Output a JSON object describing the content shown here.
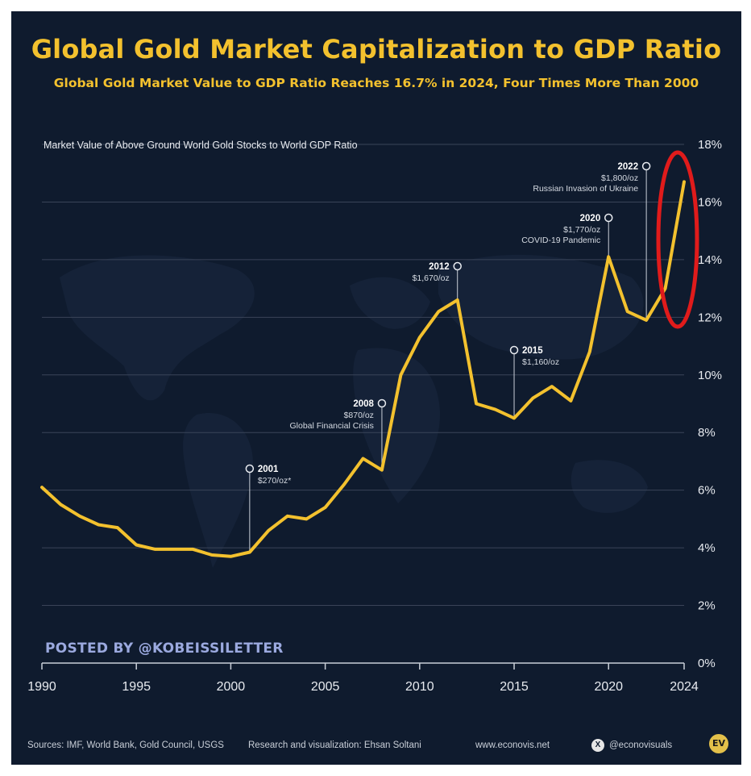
{
  "title": "Global Gold Market Capitalization to GDP Ratio",
  "subtitle": "Global Gold Market Value to GDP Ratio Reaches 16.7% in 2024, Four Times More Than 2000",
  "posted_by": "POSTED BY @KOBEISSILETTER",
  "footer": {
    "sources": "Sources: IMF, World Bank, Gold Council, USGS",
    "research": "Research and visualization: Ehsan Soltani",
    "website": "www.econovis.net",
    "handle": "@econovisuals",
    "x_icon": "X",
    "logo_text": "EV"
  },
  "colors": {
    "background": "#0f1b2e",
    "line": "#f3c12e",
    "title": "#f3c12e",
    "highlight_circle": "#e01b1b",
    "grid": "#3a4458"
  },
  "chart_data": {
    "type": "line",
    "ylabel": "Market Value of Above Ground World Gold Stocks to World GDP Ratio",
    "xlim": [
      1990,
      2024
    ],
    "ylim": [
      0,
      18
    ],
    "grid": true,
    "x_ticks": [
      "1990",
      "1995",
      "2000",
      "2005",
      "2010",
      "2015",
      "2020",
      "2024"
    ],
    "y_ticks": [
      "0%",
      "2%",
      "4%",
      "6%",
      "8%",
      "10%",
      "12%",
      "14%",
      "16%",
      "18%"
    ],
    "series": [
      {
        "x": [
          1990,
          1991,
          1992,
          1993,
          1994,
          1995,
          1996,
          1997,
          1998,
          1999,
          2000,
          2001,
          2002,
          2003,
          2004,
          2005,
          2006,
          2007,
          2008,
          2009,
          2010,
          2011,
          2012,
          2013,
          2014,
          2015,
          2016,
          2017,
          2018,
          2019,
          2020,
          2021,
          2022,
          2023,
          2024
        ],
        "values": [
          6.1,
          5.5,
          5.1,
          4.8,
          4.7,
          4.1,
          3.95,
          3.95,
          3.95,
          3.75,
          3.7,
          3.85,
          4.6,
          5.1,
          5.0,
          5.4,
          6.2,
          7.1,
          6.7,
          10.0,
          11.3,
          12.2,
          12.6,
          9.0,
          8.8,
          8.5,
          9.2,
          9.6,
          9.1,
          10.8,
          14.1,
          12.2,
          11.9,
          13.0,
          16.7
        ]
      }
    ],
    "annotations": [
      {
        "year": "2001",
        "lines": [
          "$270/oz*"
        ]
      },
      {
        "year": "2008",
        "lines": [
          "$870/oz",
          "Global Financial Crisis"
        ]
      },
      {
        "year": "2012",
        "lines": [
          "$1,670/oz"
        ]
      },
      {
        "year": "2015",
        "lines": [
          "$1,160/oz"
        ]
      },
      {
        "year": "2020",
        "lines": [
          "$1,770/oz",
          "COVID-19 Pandemic"
        ]
      },
      {
        "year": "2022",
        "lines": [
          "$1,800/oz",
          "Russian Invasion of Ukraine"
        ]
      }
    ]
  }
}
